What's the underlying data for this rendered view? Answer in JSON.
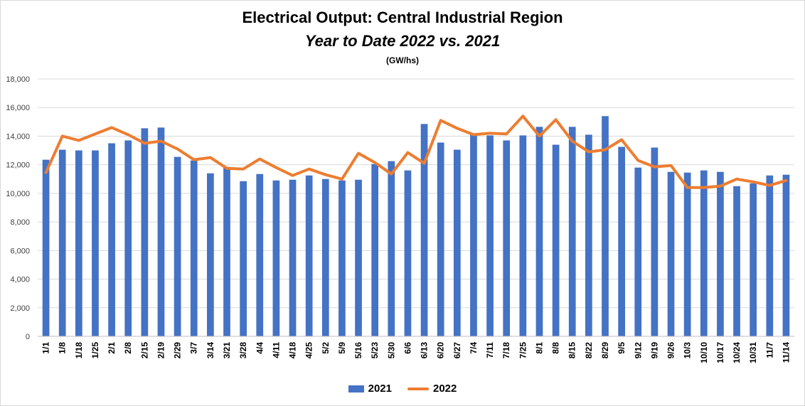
{
  "chart_data": {
    "type": "bar",
    "title": "Electrical Output:  Central Industrial Region",
    "subtitle": "Year to Date 2022 vs. 2021",
    "unit_label": "(GW/hs)",
    "ylim": [
      0,
      18000
    ],
    "yticks": [
      "0",
      "2,000",
      "4,000",
      "6,000",
      "8,000",
      "10,000",
      "12,000",
      "14,000",
      "16,000",
      "18,000"
    ],
    "grid": true,
    "legend_position": "bottom",
    "categories": [
      "1/1",
      "1/8",
      "1/18",
      "1/25",
      "2/1",
      "2/8",
      "2/15",
      "2/19",
      "2/29",
      "3/7",
      "3/14",
      "3/21",
      "3/28",
      "4/4",
      "4/11",
      "4/18",
      "4/25",
      "5/2",
      "5/9",
      "5/16",
      "5/23",
      "5/30",
      "6/6",
      "6/13",
      "6/20",
      "6/27",
      "7/4",
      "7/11",
      "7/18",
      "7/25",
      "8/1",
      "8/8",
      "8/15",
      "8/22",
      "8/29",
      "9/5",
      "9/12",
      "9/19",
      "9/26",
      "10/3",
      "10/10",
      "10/17",
      "10/24",
      "10/31",
      "11/7",
      "11/14"
    ],
    "series": [
      {
        "name": "2021",
        "type": "bar",
        "color": "#4472c4",
        "values": [
          12350,
          13050,
          13000,
          13000,
          13500,
          13700,
          14550,
          14600,
          12550,
          12300,
          11400,
          11850,
          10850,
          11350,
          10900,
          10950,
          11250,
          11000,
          10900,
          10950,
          12050,
          12250,
          11600,
          14850,
          13550,
          13050,
          14100,
          14050,
          13700,
          14050,
          14650,
          13400,
          14650,
          14100,
          15400,
          13250,
          11800,
          13200,
          11500,
          11450,
          11600,
          11500,
          10500,
          10700,
          11250,
          11300
        ]
      },
      {
        "name": "2022",
        "type": "line",
        "color": "#ed7d31",
        "values": [
          11450,
          14000,
          13700,
          14150,
          14600,
          14100,
          13500,
          13650,
          13100,
          12350,
          12500,
          11750,
          11700,
          12400,
          11800,
          11250,
          11700,
          11300,
          11000,
          12800,
          12150,
          11350,
          12850,
          12100,
          15100,
          14550,
          14100,
          14200,
          14150,
          15400,
          14000,
          15150,
          13650,
          12900,
          13050,
          13750,
          12300,
          11850,
          11950,
          10400,
          10400,
          10500,
          11000,
          10800,
          10550,
          10900
        ]
      }
    ]
  }
}
